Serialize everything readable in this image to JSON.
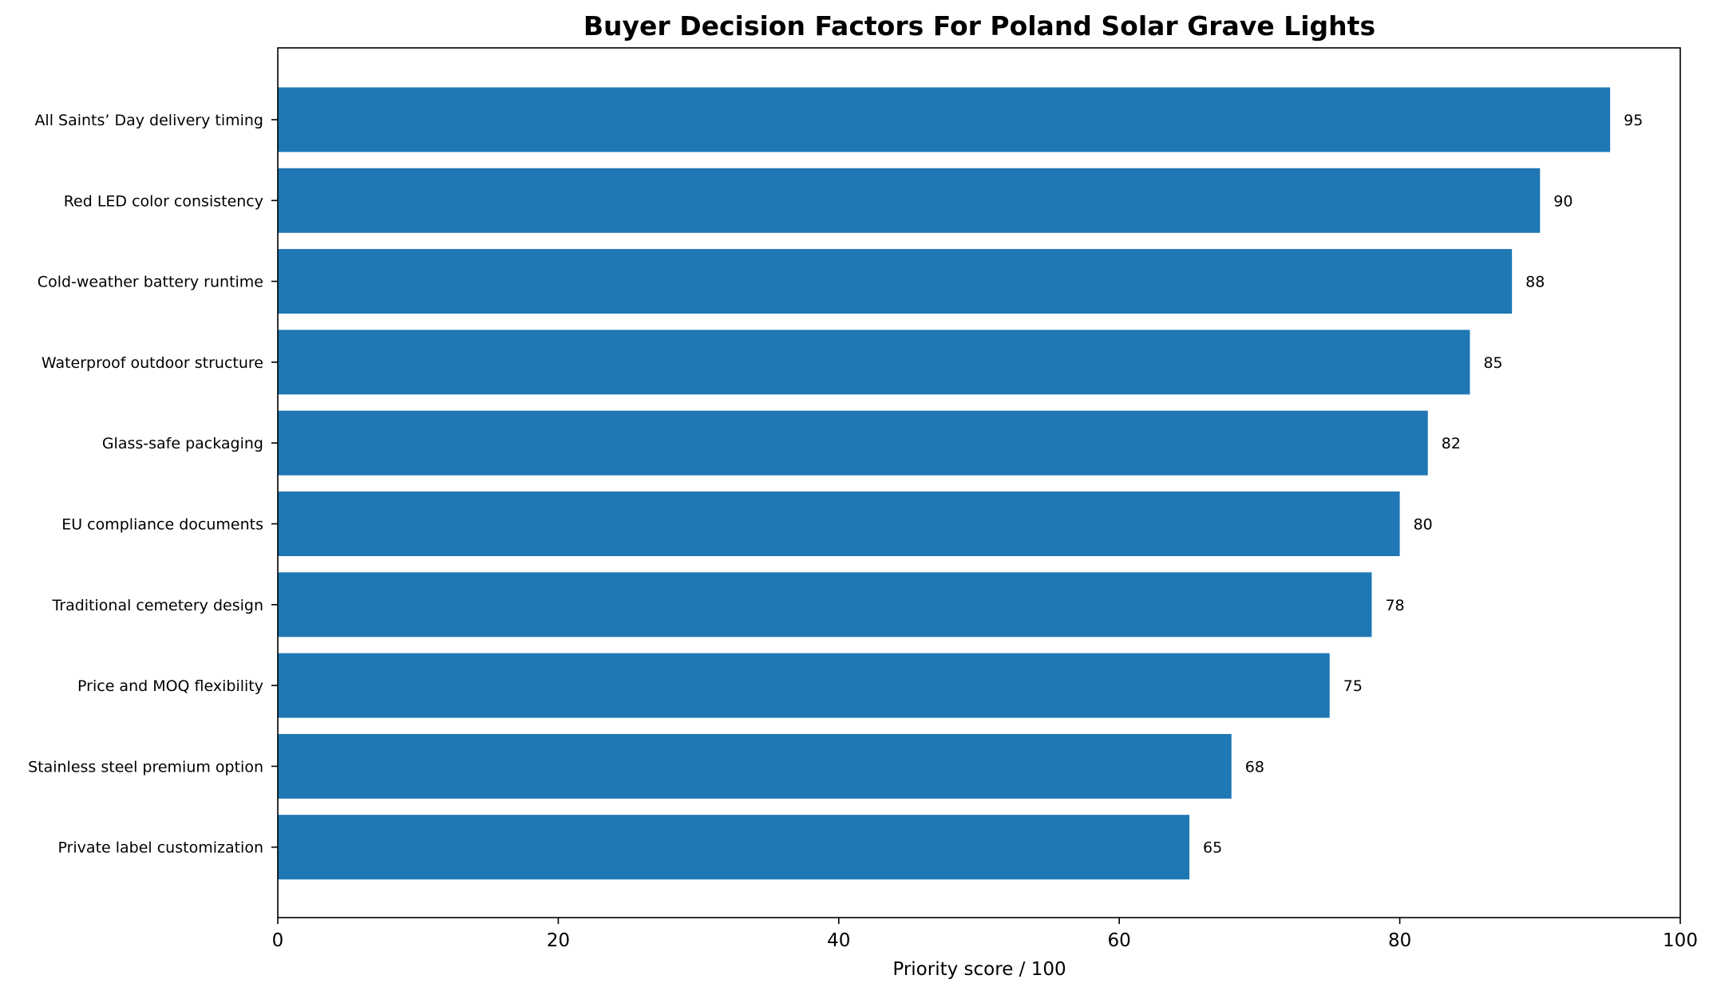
{
  "chart_data": {
    "type": "bar",
    "orientation": "horizontal",
    "title": "Buyer Decision Factors For Poland Solar Grave Lights",
    "xlabel": "Priority score / 100",
    "ylabel": "",
    "xlim": [
      0,
      100
    ],
    "xticks": [
      "0",
      "20",
      "40",
      "60",
      "80",
      "100"
    ],
    "categories": [
      "All Saints’ Day delivery timing",
      "Red LED color consistency",
      "Cold-weather battery runtime",
      "Waterproof outdoor structure",
      "Glass-safe packaging",
      "EU compliance documents",
      "Traditional cemetery design",
      "Price and MOQ flexibility",
      "Stainless steel premium option",
      "Private label customization"
    ],
    "values": [
      95,
      90,
      88,
      85,
      82,
      80,
      78,
      75,
      68,
      65
    ],
    "value_labels": [
      "95",
      "90",
      "88",
      "85",
      "82",
      "80",
      "78",
      "75",
      "68",
      "65"
    ],
    "bar_color": "#1f77b4",
    "grid": false,
    "legend": "none"
  }
}
